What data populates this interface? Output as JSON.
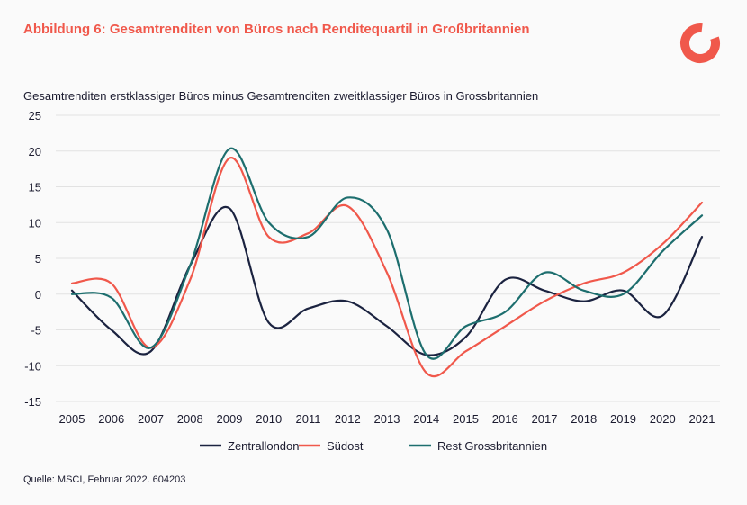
{
  "header": {
    "title": "Abbildung 6: Gesamtrenditen von Büros nach Renditequartil in Großbritannien",
    "logo_icon": "red-ring-logo-icon"
  },
  "footer": {
    "source": "Quelle: MSCI, Februar 2022. 604203"
  },
  "colors": {
    "title": "#f0584b",
    "zentrallondon": "#1b2340",
    "suedost": "#f0584b",
    "rest": "#1d6e6e",
    "grid": "#e2e2e2"
  },
  "chart_data": {
    "type": "line",
    "title": "Gesamtrenditen erstklassiger Büros minus Gesamtrenditen zweitklassiger Büros in Grossbritannien",
    "xlabel": "",
    "ylabel": "",
    "x": [
      2005,
      2006,
      2007,
      2008,
      2009,
      2010,
      2011,
      2012,
      2013,
      2014,
      2015,
      2016,
      2017,
      2018,
      2019,
      2020,
      2021
    ],
    "ylim": [
      -15,
      25
    ],
    "yticks": [
      25,
      20,
      15,
      10,
      5,
      0,
      -5,
      -10,
      -15
    ],
    "grid": true,
    "legend_position": "bottom",
    "series": [
      {
        "name": "Zentrallondon",
        "color": "#1b2340",
        "values": [
          0.5,
          -5,
          -8,
          4,
          12,
          -4,
          -2,
          -1,
          -4.5,
          -8.5,
          -6,
          2,
          0.5,
          -1,
          0.5,
          -3,
          8
        ]
      },
      {
        "name": "Südost",
        "color": "#f0584b",
        "values": [
          1.5,
          1.5,
          -7.5,
          2,
          19,
          8,
          8.5,
          12.3,
          3,
          -11,
          -8,
          -4.5,
          -1,
          1.5,
          3,
          7,
          12.8
        ]
      },
      {
        "name": "Rest Grossbritannien",
        "color": "#1d6e6e",
        "values": [
          0,
          -0.5,
          -7.5,
          4,
          20.3,
          10,
          8,
          13.5,
          9,
          -8.5,
          -4.5,
          -2.5,
          3,
          0.5,
          0,
          6,
          11
        ]
      }
    ]
  }
}
